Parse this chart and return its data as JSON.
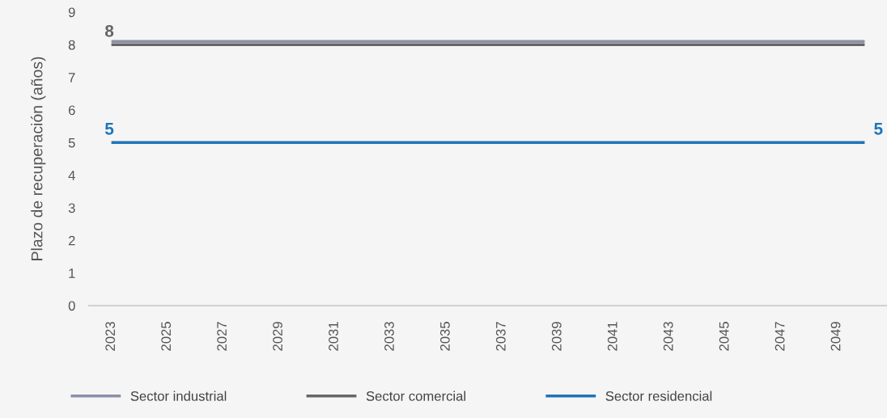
{
  "chart_data": {
    "type": "line",
    "ylabel": "Plazo de recuperación (años)",
    "categories": [
      "2023",
      null,
      "2025",
      null,
      "2027",
      null,
      "2029",
      null,
      "2031",
      null,
      "2033",
      null,
      "2035",
      null,
      "2037",
      null,
      "2039",
      null,
      "2041",
      null,
      "2043",
      null,
      "2045",
      null,
      "2047",
      null,
      "2049",
      null
    ],
    "ylim": [
      0,
      9
    ],
    "yticks": [
      0,
      1,
      2,
      3,
      4,
      5,
      6,
      7,
      8,
      9
    ],
    "grid": false,
    "legend": "bottom",
    "marker": "none",
    "line_style": "solid",
    "series": [
      {
        "name": "Sector industrial",
        "color": "#8c8fa8",
        "values": [
          8.1,
          8.1,
          8.1,
          8.1,
          8.1,
          8.1,
          8.1,
          8.1,
          8.1,
          8.1,
          8.1,
          8.1,
          8.1,
          8.1,
          8.1,
          8.1,
          8.1,
          8.1,
          8.1,
          8.1,
          8.1,
          8.1,
          8.1,
          8.1,
          8.1,
          8.1,
          8.1,
          8.1
        ]
      },
      {
        "name": "Sector comercial",
        "color": "#666666",
        "values": [
          8,
          8,
          8,
          8,
          8,
          8,
          8,
          8,
          8,
          8,
          8,
          8,
          8,
          8,
          8,
          8,
          8,
          8,
          8,
          8,
          8,
          8,
          8,
          8,
          8,
          8,
          8,
          8
        ],
        "value_labels": [
          "8",
          null,
          null,
          null,
          null,
          null,
          null,
          null,
          null,
          null,
          null,
          null,
          null,
          null,
          null,
          null,
          null,
          null,
          null,
          null,
          null,
          null,
          null,
          null,
          null,
          null,
          null,
          null
        ]
      },
      {
        "name": "Sector residencial",
        "color": "#1f74b8",
        "values": [
          5,
          5,
          5,
          5,
          5,
          5,
          5,
          5,
          5,
          5,
          5,
          5,
          5,
          5,
          5,
          5,
          5,
          5,
          5,
          5,
          5,
          5,
          5,
          5,
          5,
          5,
          5,
          5
        ],
        "value_labels": [
          "5",
          null,
          null,
          null,
          null,
          null,
          null,
          null,
          null,
          null,
          null,
          null,
          null,
          null,
          null,
          null,
          null,
          null,
          null,
          null,
          null,
          null,
          null,
          null,
          null,
          null,
          null,
          "5"
        ]
      }
    ]
  }
}
